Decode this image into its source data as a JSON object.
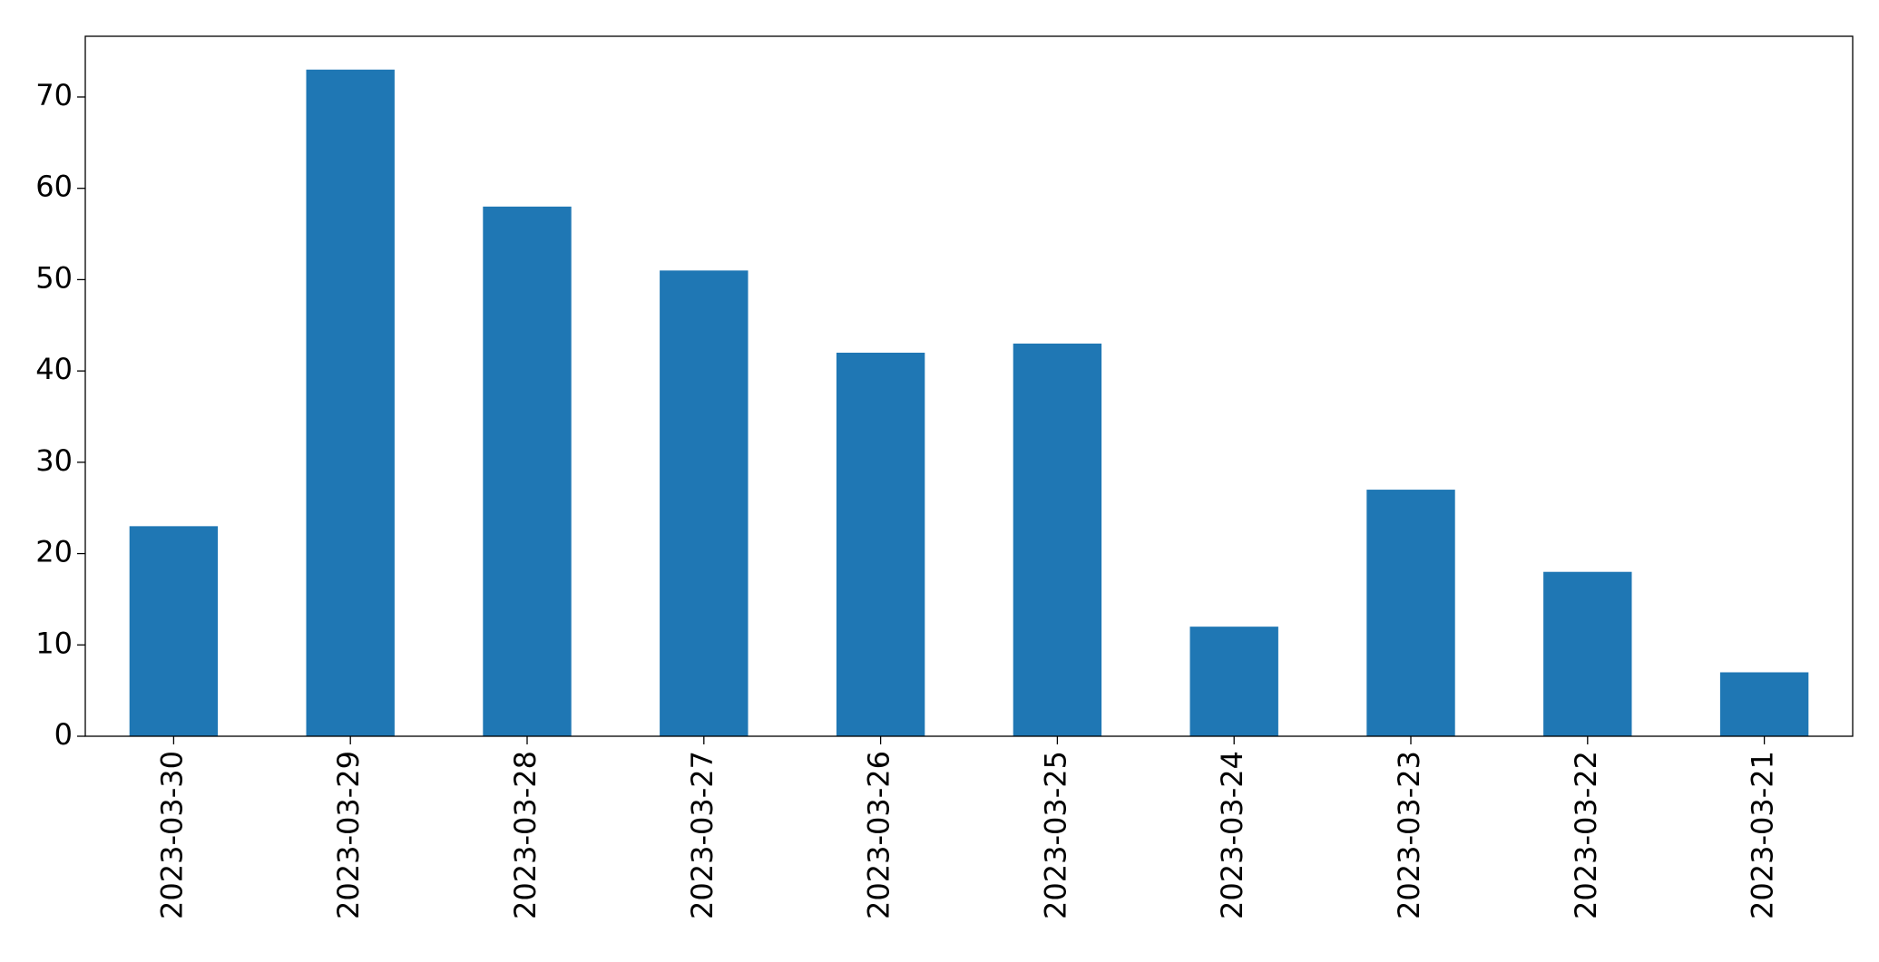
{
  "chart_data": {
    "type": "bar",
    "categories": [
      "2023-03-30",
      "2023-03-29",
      "2023-03-28",
      "2023-03-27",
      "2023-03-26",
      "2023-03-25",
      "2023-03-24",
      "2023-03-23",
      "2023-03-22",
      "2023-03-21"
    ],
    "values": [
      23,
      73,
      58,
      51,
      42,
      43,
      12,
      27,
      18,
      7
    ],
    "color": "#1f77b4",
    "ylim": [
      0,
      76.65
    ],
    "yticks": [
      0,
      10,
      20,
      30,
      40,
      50,
      60,
      70
    ],
    "grid": false
  }
}
